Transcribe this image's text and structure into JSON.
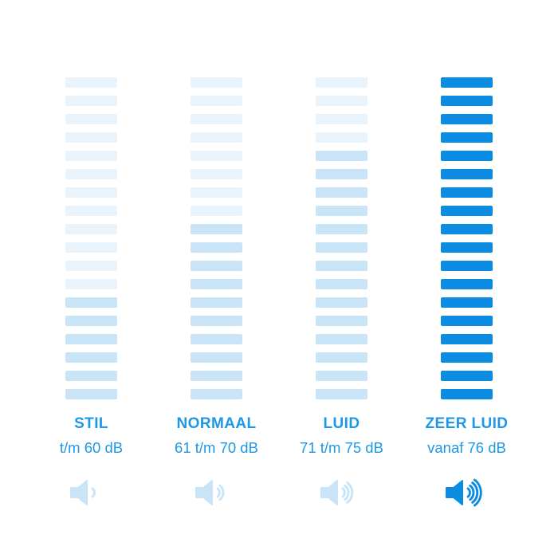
{
  "colors": {
    "background": "#ffffff",
    "segment_empty": "#e8f3fb",
    "segment_filled_light": "#c9e4f7",
    "segment_filled_strong": "#0b8ce2",
    "label_text": "#1e97e6"
  },
  "chart_data": {
    "type": "bar",
    "title": "",
    "description": "Loudness level scale in decibels, shown as four segmented columns filled from the bottom",
    "segments_total": 18,
    "categories": [
      "STIL",
      "NORMAAL",
      "LUID",
      "ZEER LUID"
    ],
    "series": [
      {
        "name": "filled_segments",
        "values": [
          6,
          10,
          14,
          18
        ]
      }
    ],
    "range_labels": [
      "t/m 60 dB",
      "61 t/m 70 dB",
      "71 t/m 75 dB",
      "vanaf 76 dB"
    ],
    "sound_wave_counts": [
      1,
      2,
      3,
      4
    ],
    "legend_position": "none",
    "grid": false
  },
  "columns": [
    {
      "id": "stil",
      "label": "STIL",
      "range": "t/m 60 dB",
      "filled": 6,
      "intensity": "light",
      "waves": 1
    },
    {
      "id": "normaal",
      "label": "NORMAAL",
      "range": "61 t/m 70 dB",
      "filled": 10,
      "intensity": "light",
      "waves": 2
    },
    {
      "id": "luid",
      "label": "LUID",
      "range": "71 t/m 75 dB",
      "filled": 14,
      "intensity": "light",
      "waves": 3
    },
    {
      "id": "zeer-luid",
      "label": "ZEER LUID",
      "range": "vanaf 76 dB",
      "filled": 18,
      "intensity": "strong",
      "waves": 4
    }
  ]
}
